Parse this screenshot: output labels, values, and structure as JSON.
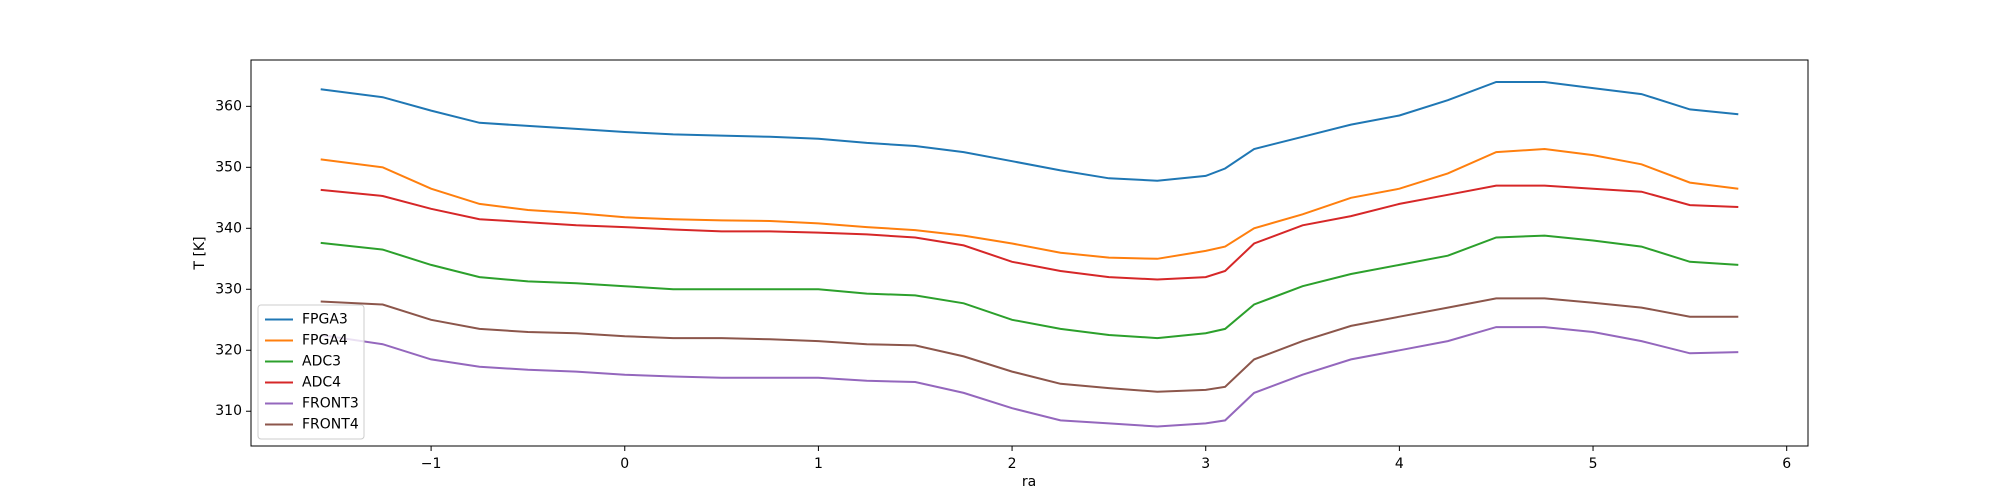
{
  "chart_data": {
    "type": "line",
    "xlabel": "ra",
    "ylabel": "T [K]",
    "x": [
      -1.57,
      -1.25,
      -1,
      -0.75,
      -0.5,
      -0.25,
      0,
      0.25,
      0.5,
      0.75,
      1,
      1.25,
      1.5,
      1.75,
      2,
      2.25,
      2.5,
      2.75,
      3,
      3.1,
      3.25,
      3.5,
      3.75,
      4,
      4.25,
      4.5,
      4.75,
      5,
      5.25,
      5.5,
      5.75
    ],
    "series": [
      {
        "name": "FPGA3",
        "color": "#1f77b4",
        "values": [
          362.8,
          361.5,
          359.3,
          357.3,
          356.8,
          356.3,
          355.8,
          355.4,
          355.2,
          355,
          354.7,
          354,
          353.5,
          352.5,
          351,
          349.5,
          348.2,
          347.8,
          348.6,
          349.8,
          353,
          355,
          357,
          358.5,
          361,
          364,
          364,
          363,
          362,
          359.5,
          358.7
        ]
      },
      {
        "name": "FPGA4",
        "color": "#ff7f0e",
        "values": [
          351.3,
          350,
          346.5,
          344,
          343,
          342.5,
          341.8,
          341.5,
          341.3,
          341.2,
          340.8,
          340.2,
          339.7,
          338.8,
          337.5,
          336,
          335.2,
          335,
          336.3,
          337,
          340,
          342.3,
          345,
          346.5,
          349,
          352.5,
          353,
          352,
          350.5,
          347.5,
          346.5
        ]
      },
      {
        "name": "ADC3",
        "color": "#2ca02c",
        "values": [
          337.6,
          336.5,
          334,
          332,
          331.3,
          331,
          330.5,
          330,
          330,
          330,
          330,
          329.3,
          329,
          327.7,
          325,
          323.5,
          322.5,
          322,
          322.8,
          323.5,
          327.5,
          330.5,
          332.5,
          334,
          335.5,
          338.5,
          338.8,
          338,
          337,
          334.5,
          334
        ]
      },
      {
        "name": "ADC4",
        "color": "#d62728",
        "values": [
          346.3,
          345.3,
          343.2,
          341.5,
          341,
          340.5,
          340.2,
          339.8,
          339.5,
          339.5,
          339.3,
          339,
          338.5,
          337.2,
          334.5,
          333,
          332,
          331.6,
          332,
          333,
          337.5,
          340.5,
          342,
          344,
          345.5,
          347,
          347,
          346.5,
          346,
          343.8,
          343.5
        ]
      },
      {
        "name": "FRONT3",
        "color": "#9467bd",
        "values": [
          322.5,
          321,
          318.5,
          317.3,
          316.8,
          316.5,
          316,
          315.7,
          315.5,
          315.5,
          315.5,
          315,
          314.8,
          313,
          310.5,
          308.5,
          308,
          307.5,
          308,
          308.5,
          313,
          316,
          318.5,
          320,
          321.5,
          323.8,
          323.8,
          323,
          321.5,
          319.5,
          319.7
        ]
      },
      {
        "name": "FRONT4",
        "color": "#8c564b",
        "values": [
          328,
          327.5,
          325,
          323.5,
          323,
          322.8,
          322.3,
          322,
          322,
          321.8,
          321.5,
          321,
          320.8,
          319,
          316.5,
          314.5,
          313.8,
          313.2,
          313.5,
          314,
          318.5,
          321.5,
          324,
          325.5,
          327,
          328.5,
          328.5,
          327.8,
          327,
          325.5,
          325.5
        ]
      }
    ],
    "xlim": [
      -1.93,
      6.11
    ],
    "xticks": [
      {
        "value": -1,
        "label": "−1"
      },
      0,
      1,
      2,
      3,
      4,
      5,
      6
    ],
    "ylim": [
      304.3,
      367.6
    ],
    "yticks": [
      310,
      320,
      330,
      340,
      350,
      360
    ],
    "legend": "lower left"
  }
}
